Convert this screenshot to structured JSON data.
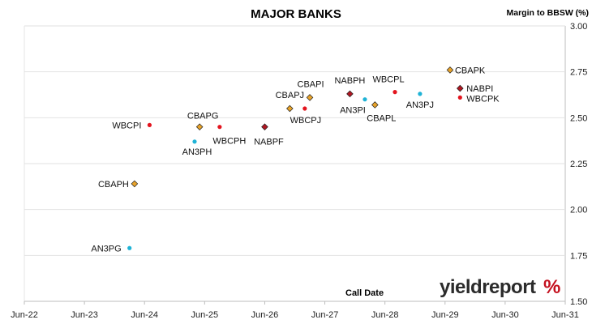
{
  "chart_data": {
    "type": "scatter",
    "title": "MAJOR BANKS",
    "ylabel": "Margin to BBSW (%)",
    "xlabel": "Call Date",
    "x_ticks": [
      "Jun-22",
      "Jun-23",
      "Jun-24",
      "Jun-25",
      "Jun-26",
      "Jun-27",
      "Jun-28",
      "Jun-29",
      "Jun-30",
      "Jun-31"
    ],
    "y_ticks": [
      "1.50",
      "1.75",
      "2.00",
      "2.25",
      "2.50",
      "2.75",
      "3.00"
    ],
    "ylim": [
      1.5,
      3.0
    ],
    "xlim": [
      "2022-06",
      "2031-06"
    ],
    "y_axis_side": "right",
    "grid": "horizontal",
    "points": [
      {
        "label": "AN3PG",
        "x": "2024-03",
        "y": 1.79,
        "color": "#1fb3d6",
        "shape": "circle"
      },
      {
        "label": "CBAPH",
        "x": "2024-04",
        "y": 2.14,
        "color": "#e8a32a",
        "shape": "diamond"
      },
      {
        "label": "WBCPI",
        "x": "2024-07",
        "y": 2.46,
        "color": "#e3141e",
        "shape": "circle"
      },
      {
        "label": "AN3PH",
        "x": "2025-04",
        "y": 2.37,
        "color": "#1fb3d6",
        "shape": "circle"
      },
      {
        "label": "CBAPG",
        "x": "2025-05",
        "y": 2.45,
        "color": "#e8a32a",
        "shape": "diamond"
      },
      {
        "label": "WBCPH",
        "x": "2025-09",
        "y": 2.45,
        "color": "#e3141e",
        "shape": "circle"
      },
      {
        "label": "NABPF",
        "x": "2026-06",
        "y": 2.45,
        "color": "#b01722",
        "shape": "diamond"
      },
      {
        "label": "CBAPJ",
        "x": "2026-11",
        "y": 2.55,
        "color": "#e8a32a",
        "shape": "diamond"
      },
      {
        "label": "CBAPI",
        "x": "2027-03",
        "y": 2.61,
        "color": "#e8a32a",
        "shape": "diamond"
      },
      {
        "label": "WBCPJ",
        "x": "2027-02",
        "y": 2.55,
        "color": "#e3141e",
        "shape": "circle"
      },
      {
        "label": "NABPH",
        "x": "2027-11",
        "y": 2.63,
        "color": "#b01722",
        "shape": "diamond"
      },
      {
        "label": "AN3PI",
        "x": "2028-02",
        "y": 2.6,
        "color": "#1fb3d6",
        "shape": "circle"
      },
      {
        "label": "CBAPL",
        "x": "2028-04",
        "y": 2.57,
        "color": "#e8a32a",
        "shape": "diamond"
      },
      {
        "label": "WBCPL",
        "x": "2028-08",
        "y": 2.64,
        "color": "#e3141e",
        "shape": "circle"
      },
      {
        "label": "AN3PJ",
        "x": "2029-01",
        "y": 2.63,
        "color": "#1fb3d6",
        "shape": "circle"
      },
      {
        "label": "CBAPK",
        "x": "2029-07",
        "y": 2.76,
        "color": "#e8a32a",
        "shape": "diamond"
      },
      {
        "label": "NABPI",
        "x": "2029-09",
        "y": 2.66,
        "color": "#b01722",
        "shape": "diamond"
      },
      {
        "label": "WBCPK",
        "x": "2029-09",
        "y": 2.61,
        "color": "#e3141e",
        "shape": "circle"
      }
    ]
  },
  "branding": {
    "logo_word": "yieldreport",
    "logo_symbol": "%"
  }
}
